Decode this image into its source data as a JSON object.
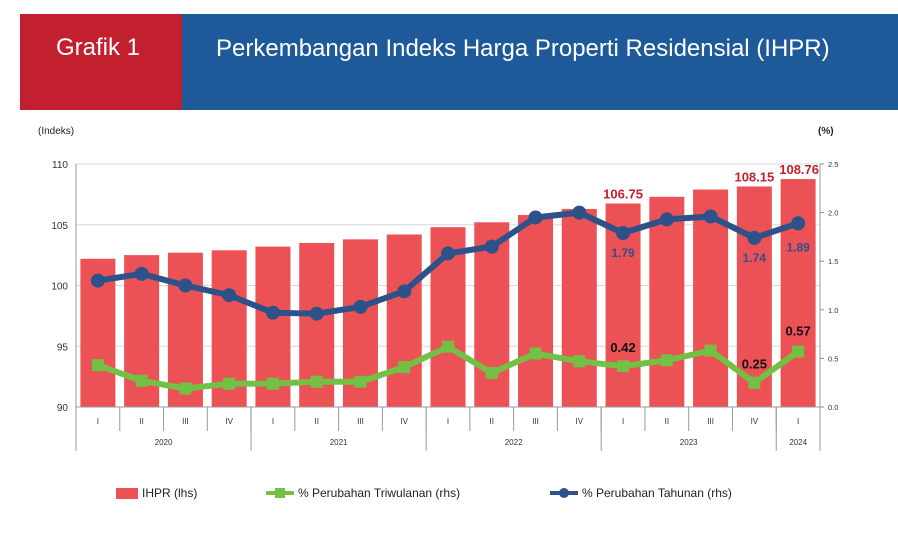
{
  "header": {
    "label": "Grafik 1",
    "title": "Perkembangan Indeks Harga Properti Residensial (IHPR)",
    "left_color": "#c2202f",
    "right_color": "#1e5a99"
  },
  "chart_data": {
    "type": "bar+line",
    "left_unit_label": "(Indeks)",
    "right_unit_label": "(%)",
    "left_axis": {
      "min": 90,
      "max": 110,
      "ticks": [
        90,
        95,
        100,
        105,
        110
      ]
    },
    "right_axis": {
      "min": 0.0,
      "max": 2.5,
      "ticks": [
        "0.0",
        "0.5",
        "1.0",
        "1.5",
        "2.0",
        "2.5"
      ]
    },
    "categories": [
      "I",
      "II",
      "III",
      "IV",
      "I",
      "II",
      "III",
      "IV",
      "I",
      "II",
      "III",
      "IV",
      "I",
      "II",
      "III",
      "IV",
      "I"
    ],
    "years": [
      {
        "label": "2020",
        "start": 0,
        "end": 3
      },
      {
        "label": "2021",
        "start": 4,
        "end": 7
      },
      {
        "label": "2022",
        "start": 8,
        "end": 11
      },
      {
        "label": "2023",
        "start": 12,
        "end": 15
      },
      {
        "label": "2024",
        "start": 16,
        "end": 16
      }
    ],
    "series": [
      {
        "name": "IHPR (lhs)",
        "kind": "bar",
        "axis": "left",
        "color": "#ec5156",
        "values": [
          102.2,
          102.5,
          102.7,
          102.9,
          103.2,
          103.5,
          103.8,
          104.2,
          104.8,
          105.2,
          105.8,
          106.3,
          106.75,
          107.3,
          107.9,
          108.15,
          108.76
        ]
      },
      {
        "name": "% Perubahan Triwulanan (rhs)",
        "kind": "line",
        "axis": "right",
        "color": "#72c044",
        "marker": "square",
        "values": [
          0.43,
          0.27,
          0.19,
          0.24,
          0.24,
          0.26,
          0.26,
          0.41,
          0.62,
          0.35,
          0.55,
          0.47,
          0.42,
          0.48,
          0.58,
          0.25,
          0.57
        ]
      },
      {
        "name": "% Perubahan Tahunan (rhs)",
        "kind": "line",
        "axis": "right",
        "color": "#2c5289",
        "marker": "circle",
        "values": [
          1.3,
          1.37,
          1.25,
          1.15,
          0.97,
          0.96,
          1.03,
          1.19,
          1.58,
          1.65,
          1.95,
          2.0,
          1.79,
          1.93,
          1.96,
          1.74,
          1.89
        ]
      }
    ],
    "data_labels": [
      {
        "series": 0,
        "index": 12,
        "text": "106.75",
        "color": "#c2202f"
      },
      {
        "series": 0,
        "index": 15,
        "text": "108.15",
        "color": "#c2202f"
      },
      {
        "series": 0,
        "index": 16,
        "text": "108.76",
        "color": "#c2202f"
      },
      {
        "series": 2,
        "index": 12,
        "text": "1.79",
        "color": "#2c5289"
      },
      {
        "series": 2,
        "index": 15,
        "text": "1.74",
        "color": "#2c5289"
      },
      {
        "series": 2,
        "index": 16,
        "text": "1.89",
        "color": "#2c5289"
      },
      {
        "series": 1,
        "index": 12,
        "text": "0.42",
        "color": "#111111"
      },
      {
        "series": 1,
        "index": 15,
        "text": "0.25",
        "color": "#111111"
      },
      {
        "series": 1,
        "index": 16,
        "text": "0.57",
        "color": "#111111"
      }
    ]
  }
}
